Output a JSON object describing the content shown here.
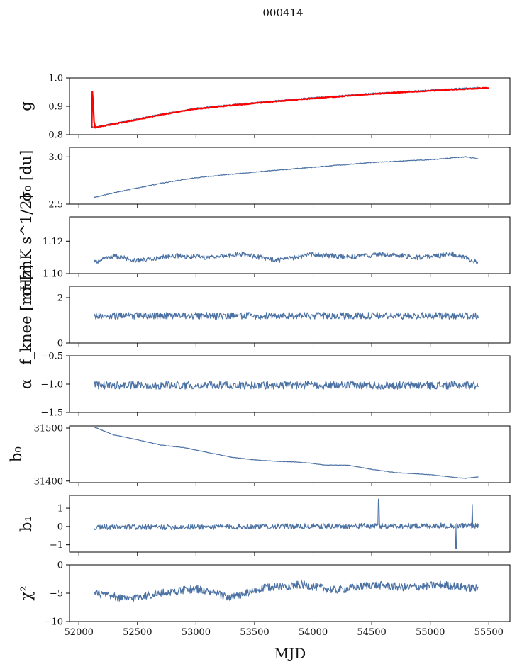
{
  "figure_title": "000414",
  "x_axis": {
    "label": "MJD",
    "range": [
      51920,
      55680
    ],
    "ticks": [
      52000,
      52500,
      53000,
      53500,
      54000,
      54500,
      55000,
      55500
    ],
    "tick_labels": [
      "52000",
      "52500",
      "53000",
      "53500",
      "54000",
      "54500",
      "55000",
      "55500"
    ]
  },
  "colors": {
    "series": "#4c72a4",
    "overlay": "#ff0000",
    "axes": "#000000"
  },
  "chart_data": [
    {
      "type": "line",
      "panel": "gain",
      "ylabel": "g",
      "ylim": [
        0.8,
        1.0
      ],
      "yticks": [
        0.8,
        0.9,
        1.0
      ],
      "ytick_labels": [
        "0.8",
        "0.9",
        "1.0"
      ],
      "x_range": [
        52110,
        55410
      ],
      "series": [
        {
          "name": "g",
          "color": "#4c72a4",
          "knots_x": [
            52110,
            52125,
            52200,
            52500,
            52700,
            53000,
            53500,
            54000,
            54500,
            55000,
            55410
          ],
          "knots_y": [
            0.828,
            0.826,
            0.832,
            0.855,
            0.872,
            0.893,
            0.913,
            0.93,
            0.945,
            0.957,
            0.966
          ],
          "noise": 0.002
        },
        {
          "name": "g model",
          "color": "#ff0000",
          "knots_x": [
            52110,
            52125,
            52200,
            52500,
            52700,
            53000,
            53500,
            54000,
            54500,
            55000,
            55500
          ],
          "knots_y": [
            0.826,
            0.824,
            0.83,
            0.853,
            0.87,
            0.891,
            0.911,
            0.928,
            0.943,
            0.955,
            0.965
          ],
          "noise": 0.0015,
          "spike": {
            "x": [
              52112,
              52135
            ],
            "y_max": 0.955
          }
        }
      ]
    },
    {
      "type": "line",
      "panel": "sigma0_du",
      "ylabel": "σ₀ [du]",
      "ylim": [
        2.5,
        3.1
      ],
      "yticks": [
        2.5,
        3.0
      ],
      "ytick_labels": [
        "2.5",
        "3.0"
      ],
      "x_range": [
        52130,
        55410
      ],
      "series": [
        {
          "name": "σ₀ [du]",
          "color": "#4c72a4",
          "knots_x": [
            52130,
            52300,
            52700,
            53000,
            53500,
            54000,
            54500,
            55000,
            55300,
            55410
          ],
          "knots_y": [
            2.57,
            2.62,
            2.72,
            2.78,
            2.84,
            2.89,
            2.94,
            2.97,
            3.0,
            2.98
          ],
          "noise": 0.004
        }
      ]
    },
    {
      "type": "line",
      "panel": "sigma0_mK",
      "ylabel": "σ₀[mK s^1/2]",
      "ylim": [
        1.1,
        1.135
      ],
      "yticks": [
        1.1,
        1.12
      ],
      "ytick_labels": [
        "1.10",
        "1.12"
      ],
      "x_range": [
        52130,
        55410
      ],
      "series": [
        {
          "name": "σ₀ [mK s^1/2]",
          "color": "#4c72a4",
          "knots_x": [
            52130,
            52300,
            52500,
            52800,
            53100,
            53400,
            53700,
            54000,
            54300,
            54600,
            54900,
            55200,
            55410
          ],
          "knots_y": [
            1.107,
            1.111,
            1.108,
            1.111,
            1.11,
            1.112,
            1.108,
            1.112,
            1.11,
            1.112,
            1.11,
            1.112,
            1.107
          ],
          "noise": 0.0015
        }
      ]
    },
    {
      "type": "line",
      "panel": "fknee",
      "ylabel": "f_knee [mHz]",
      "ylim": [
        0,
        2.5
      ],
      "yticks": [
        0,
        2
      ],
      "ytick_labels": [
        "0",
        "2"
      ],
      "x_range": [
        52130,
        55410
      ],
      "series": [
        {
          "name": "f_knee",
          "color": "#4c72a4",
          "knots_x": [
            52130,
            55410
          ],
          "knots_y": [
            1.2,
            1.2
          ],
          "noise": 0.15
        }
      ]
    },
    {
      "type": "line",
      "panel": "alpha",
      "ylabel": "α",
      "ylim": [
        -1.5,
        -0.5
      ],
      "yticks": [
        -1.5,
        -1.0,
        -0.5
      ],
      "ytick_labels": [
        "−1.5",
        "−1.0",
        "−0.5"
      ],
      "x_range": [
        52130,
        55410
      ],
      "series": [
        {
          "name": "α",
          "color": "#4c72a4",
          "knots_x": [
            52130,
            55410
          ],
          "knots_y": [
            -1.02,
            -1.02
          ],
          "noise": 0.07
        }
      ]
    },
    {
      "type": "line",
      "panel": "b0",
      "ylabel": "b₀",
      "ylim": [
        31397,
        31504
      ],
      "yticks": [
        31400,
        31500
      ],
      "ytick_labels": [
        "31400",
        "31500"
      ],
      "x_range": [
        52130,
        55410
      ],
      "series": [
        {
          "name": "b₀",
          "color": "#4c72a4",
          "knots_x": [
            52130,
            52300,
            52500,
            52700,
            52900,
            53100,
            53300,
            53500,
            53700,
            53850,
            54000,
            54100,
            54300,
            54500,
            54700,
            55000,
            55200,
            55300,
            55410
          ],
          "knots_y": [
            31502,
            31487,
            31478,
            31468,
            31463,
            31454,
            31445,
            31440,
            31437,
            31436,
            31433,
            31430,
            31430,
            31422,
            31416,
            31412,
            31407,
            31405,
            31408
          ],
          "noise": 0.4
        }
      ]
    },
    {
      "type": "line",
      "panel": "b1",
      "ylabel": "b₁",
      "ylim": [
        -1.4,
        1.7
      ],
      "yticks": [
        -1,
        0,
        1
      ],
      "ytick_labels": [
        "−1",
        "0",
        "1"
      ],
      "x_range": [
        52130,
        55410
      ],
      "series": [
        {
          "name": "b₁",
          "color": "#4c72a4",
          "knots_x": [
            52130,
            55410
          ],
          "knots_y": [
            -0.05,
            0.05
          ],
          "noise": 0.15,
          "spikes": [
            {
              "x": 54560,
              "y": 1.5
            },
            {
              "x": 55220,
              "y": -1.2
            },
            {
              "x": 55360,
              "y": 1.2
            }
          ]
        }
      ]
    },
    {
      "type": "line",
      "panel": "chi2",
      "ylabel": "χ²",
      "ylim": [
        -10,
        0
      ],
      "yticks": [
        -10,
        -5,
        0
      ],
      "ytick_labels": [
        "−10",
        "−5",
        "0"
      ],
      "x_range": [
        52130,
        55410
      ],
      "series": [
        {
          "name": "χ²",
          "color": "#4c72a4",
          "knots_x": [
            52130,
            52400,
            52700,
            53000,
            53300,
            53600,
            53900,
            54200,
            54500,
            54800,
            55100,
            55410
          ],
          "knots_y": [
            -5.0,
            -6.0,
            -5.0,
            -4.2,
            -5.8,
            -4.0,
            -3.5,
            -4.5,
            -3.5,
            -4.0,
            -3.5,
            -4.2
          ],
          "noise": 0.7
        }
      ]
    }
  ]
}
